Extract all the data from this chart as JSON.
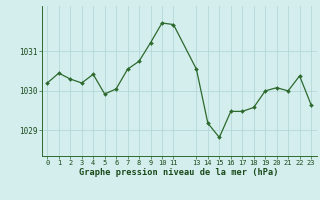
{
  "hours": [
    0,
    1,
    2,
    3,
    4,
    5,
    6,
    7,
    8,
    9,
    10,
    11,
    13,
    14,
    15,
    16,
    17,
    18,
    19,
    20,
    21,
    22,
    23
  ],
  "pressure": [
    1030.2,
    1030.45,
    1030.3,
    1030.2,
    1030.42,
    1029.92,
    1030.05,
    1030.55,
    1030.75,
    1031.22,
    1031.72,
    1031.68,
    1030.55,
    1029.18,
    1028.82,
    1029.48,
    1029.48,
    1029.58,
    1030.0,
    1030.08,
    1030.0,
    1030.38,
    1029.65
  ],
  "line_color": "#2d6a2d",
  "marker_color": "#2d6a2d",
  "bg_color": "#d4eeee",
  "grid_color": "#b0d4d4",
  "ylabel_ticks": [
    1029,
    1030,
    1031
  ],
  "ylim": [
    1028.35,
    1032.15
  ],
  "xlim": [
    -0.5,
    23.5
  ],
  "xticks": [
    0,
    1,
    2,
    3,
    4,
    5,
    6,
    7,
    8,
    9,
    10,
    11,
    13,
    14,
    15,
    16,
    17,
    18,
    19,
    20,
    21,
    22,
    23
  ],
  "xlabel": "Graphe pression niveau de la mer (hPa)",
  "spine_color": "#2d6a2d"
}
